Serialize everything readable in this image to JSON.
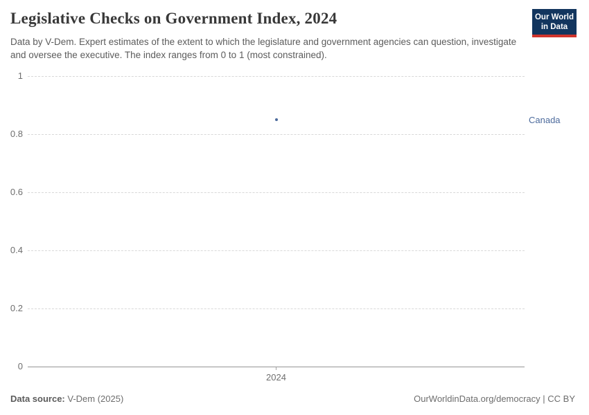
{
  "header": {
    "title": "Legislative Checks on Government Index, 2024",
    "subtitle": "Data by V-Dem. Expert estimates of the extent to which the legislature and government agencies can question, investigate and oversee the executive. The index ranges from 0 to 1 (most constrained).",
    "logo": {
      "line1": "Our World",
      "line2": "in Data",
      "bg_color": "#12355e",
      "accent_color": "#d0342c"
    }
  },
  "chart_data": {
    "type": "scatter",
    "title": "Legislative Checks on Government Index, 2024",
    "x": [
      2024
    ],
    "series": [
      {
        "name": "Canada",
        "values": [
          0.85
        ],
        "color": "#4c6a9c"
      }
    ],
    "xlabel": "",
    "ylabel": "",
    "ylim": [
      0,
      1
    ],
    "yticks": [
      0,
      0.2,
      0.4,
      0.6,
      0.8,
      1
    ],
    "xticks": [
      "2024"
    ],
    "grid": "horizontal-dashed",
    "legend": "entity-label-right-of-plot"
  },
  "footer": {
    "source_label": "Data source:",
    "source_value": "V-Dem (2025)",
    "right_text": "OurWorldinData.org/democracy | CC BY"
  }
}
